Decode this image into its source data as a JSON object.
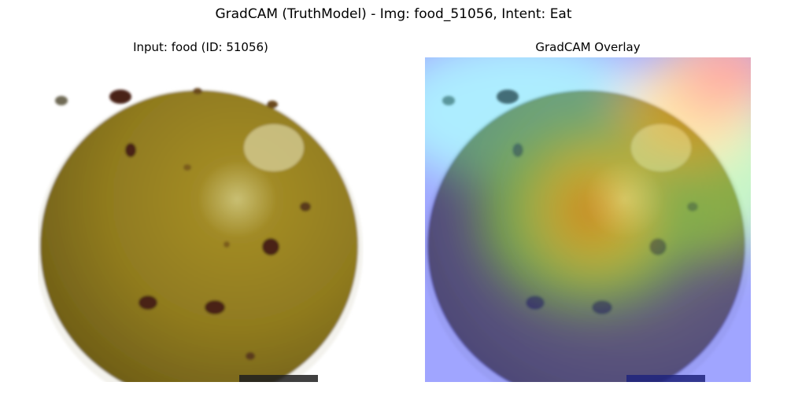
{
  "figure": {
    "suptitle": "GradCAM (TruthModel) - Img: food_51056, Intent: Eat"
  },
  "panels": {
    "input": {
      "title": "Input: food (ID: 51056)"
    },
    "overlay": {
      "title": "GradCAM Overlay"
    }
  },
  "colors": {
    "fruit": "#8f7a1f",
    "fruit_dark": "#6f5e17",
    "highlight": "#d7cf9a",
    "spot": "#4a2416",
    "background": "#ffffff"
  }
}
